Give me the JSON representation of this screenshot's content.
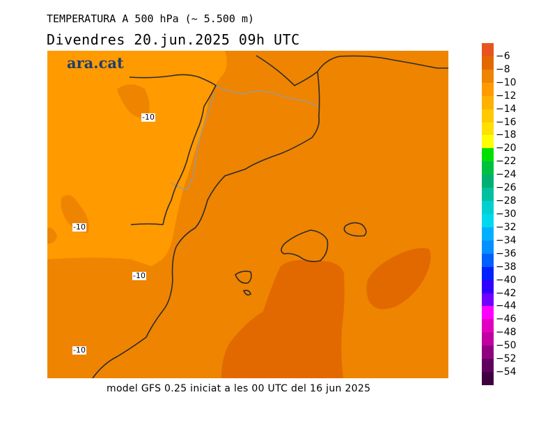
{
  "header": {
    "title": "TEMPERATURA A 500 hPa (~ 5.500 m)",
    "subtitle": "Divendres  20.jun.2025 09h UTC"
  },
  "map": {
    "brand": "ara.cat",
    "contour_labels": [
      "-10",
      "-10",
      "-10",
      "-10"
    ],
    "colors": {
      "lighter": "#ff9a00",
      "base": "#ee8400",
      "warm": "#e26800",
      "coast": "#2b2b2b",
      "border": "#9a9a9a"
    }
  },
  "legend": {
    "levels": [
      {
        "label": "-6",
        "color": "#e8541e"
      },
      {
        "label": "-8",
        "color": "#e26800"
      },
      {
        "label": "-10",
        "color": "#ee8400"
      },
      {
        "label": "-12",
        "color": "#ff9a00"
      },
      {
        "label": "-14",
        "color": "#ffb000"
      },
      {
        "label": "-16",
        "color": "#ffc800"
      },
      {
        "label": "-18",
        "color": "#ffe000"
      },
      {
        "label": "-20",
        "color": "#ffff00"
      },
      {
        "label": "-22",
        "color": "#00e000"
      },
      {
        "label": "-24",
        "color": "#00c040"
      },
      {
        "label": "-26",
        "color": "#00b070"
      },
      {
        "label": "-28",
        "color": "#00c0a0"
      },
      {
        "label": "-30",
        "color": "#00d0d0"
      },
      {
        "label": "-32",
        "color": "#00d8f0"
      },
      {
        "label": "-34",
        "color": "#00b0ff"
      },
      {
        "label": "-36",
        "color": "#0090ff"
      },
      {
        "label": "-38",
        "color": "#0060ff"
      },
      {
        "label": "-40",
        "color": "#0020ff"
      },
      {
        "label": "-42",
        "color": "#3000ff"
      },
      {
        "label": "-44",
        "color": "#7000ff"
      },
      {
        "label": "-46",
        "color": "#ff00ff"
      },
      {
        "label": "-48",
        "color": "#e000c0"
      },
      {
        "label": "-50",
        "color": "#c000a0"
      },
      {
        "label": "-52",
        "color": "#900080"
      },
      {
        "label": "-54",
        "color": "#600060"
      },
      {
        "label": "",
        "color": "#400040"
      }
    ]
  },
  "footer": {
    "text": "model GFS 0.25 iniciat a les 00 UTC del 16 jun 2025"
  }
}
